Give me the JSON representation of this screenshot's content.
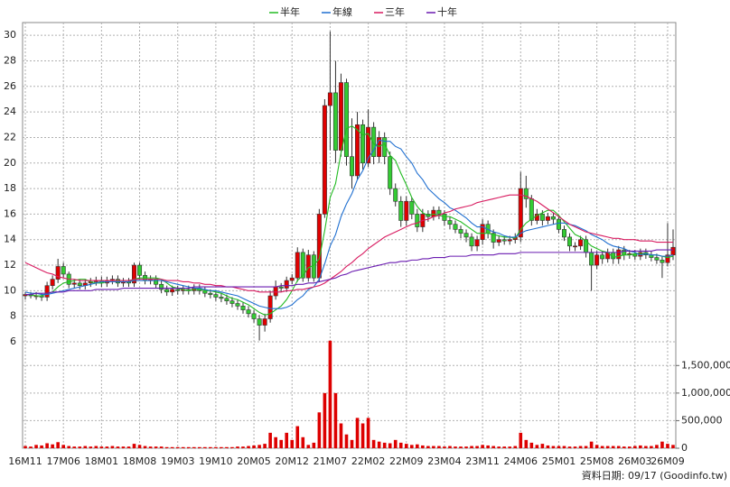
{
  "chart_data": {
    "type": "candlestick",
    "legend_position": "top",
    "grid": true,
    "up_color": "#e00000",
    "down_color": "#33cc33",
    "categories": [
      "16M11",
      null,
      null,
      null,
      null,
      null,
      null,
      "17M06",
      null,
      null,
      null,
      null,
      null,
      null,
      "18M01",
      null,
      null,
      null,
      null,
      null,
      null,
      "18M08",
      null,
      null,
      null,
      null,
      null,
      null,
      "19M03",
      null,
      null,
      null,
      null,
      null,
      null,
      "19M10",
      null,
      null,
      null,
      null,
      null,
      null,
      "20M05",
      null,
      null,
      null,
      null,
      null,
      null,
      "20M12",
      null,
      null,
      null,
      null,
      null,
      null,
      "21M07",
      null,
      null,
      null,
      null,
      null,
      null,
      "22M02",
      null,
      null,
      null,
      null,
      null,
      null,
      "22M09",
      null,
      null,
      null,
      null,
      null,
      null,
      "23M04",
      null,
      null,
      null,
      null,
      null,
      null,
      "23M11",
      null,
      null,
      null,
      null,
      null,
      null,
      "24M06",
      null,
      null,
      null,
      null,
      null,
      null,
      "25M01",
      null,
      null,
      null,
      null,
      null,
      null,
      "25M08",
      null,
      null,
      null,
      null,
      null,
      null,
      "26M03",
      null,
      null,
      null,
      null,
      null,
      "26M09",
      null
    ],
    "open": [
      9.6,
      9.7,
      9.6,
      9.6,
      9.5,
      10.4,
      10.9,
      11.9,
      11.3,
      10.5,
      10.6,
      10.4,
      10.6,
      10.7,
      10.8,
      10.6,
      10.8,
      10.9,
      10.6,
      10.7,
      10.6,
      12.0,
      11.2,
      10.8,
      10.9,
      10.5,
      10.1,
      9.9,
      10.1,
      10.0,
      10.1,
      10.0,
      10.2,
      10.0,
      9.8,
      9.7,
      9.5,
      9.4,
      9.2,
      9.0,
      8.8,
      8.5,
      8.2,
      7.8,
      7.3,
      7.8,
      9.6,
      10.3,
      10.2,
      10.8,
      11.0,
      13.0,
      11.0,
      12.8,
      11.0,
      16.0,
      24.5,
      25.5,
      21.0,
      26.3,
      20.5,
      19.0,
      23.0,
      20.0,
      22.8,
      20.5,
      22.0,
      20.5,
      18.0,
      17.0,
      15.5,
      17.0,
      16.0,
      15.0,
      16.0,
      15.8,
      16.3,
      16.0,
      15.5,
      15.2,
      14.8,
      14.5,
      14.2,
      13.5,
      14.0,
      15.2,
      14.5,
      13.8,
      14.0,
      13.9,
      14.0,
      14.2,
      18.0,
      17.2,
      15.5,
      16.0,
      15.5,
      15.8,
      15.6,
      14.8,
      14.2,
      13.5,
      13.5,
      14.0,
      13.0,
      12.0,
      12.8,
      12.5,
      13.0,
      12.5,
      13.2,
      12.8,
      12.9,
      12.7,
      13.0,
      12.8,
      12.6,
      12.4,
      12.2,
      12.8
    ],
    "high": [
      9.9,
      9.9,
      9.9,
      9.8,
      10.7,
      11.2,
      12.5,
      12.2,
      11.5,
      10.9,
      10.9,
      10.9,
      11.0,
      11.1,
      11.1,
      11.1,
      11.2,
      11.2,
      11.0,
      11.0,
      12.2,
      12.2,
      11.5,
      11.2,
      11.2,
      10.8,
      10.4,
      10.4,
      10.4,
      10.4,
      10.4,
      10.5,
      10.5,
      10.3,
      10.1,
      10.0,
      9.8,
      9.7,
      9.5,
      9.3,
      9.1,
      8.8,
      8.5,
      8.1,
      8.2,
      10.0,
      10.8,
      10.6,
      11.1,
      11.3,
      13.4,
      13.3,
      13.2,
      13.1,
      16.4,
      25.0,
      30.3,
      28.0,
      27.0,
      26.6,
      23.5,
      24.0,
      23.4,
      24.2,
      23.2,
      22.5,
      22.4,
      20.9,
      18.4,
      17.4,
      17.4,
      17.3,
      16.4,
      16.4,
      16.3,
      16.6,
      16.6,
      16.3,
      15.8,
      15.5,
      15.1,
      14.8,
      14.5,
      14.3,
      15.6,
      15.5,
      14.8,
      14.3,
      14.3,
      14.3,
      14.5,
      19.3,
      19.0,
      17.5,
      16.4,
      16.3,
      16.1,
      16.1,
      15.9,
      15.1,
      14.5,
      13.8,
      14.3,
      14.3,
      13.3,
      13.1,
      13.1,
      13.3,
      13.3,
      13.5,
      13.5,
      13.2,
      13.2,
      13.3,
      13.3,
      13.1,
      12.9,
      12.7,
      15.3,
      14.8
    ],
    "low": [
      9.3,
      9.4,
      9.3,
      9.2,
      9.2,
      10.1,
      10.6,
      11.0,
      10.2,
      10.2,
      10.1,
      10.1,
      10.3,
      10.4,
      10.3,
      10.3,
      10.5,
      10.3,
      10.3,
      10.3,
      10.3,
      10.9,
      10.5,
      10.5,
      10.2,
      9.8,
      9.6,
      9.6,
      9.7,
      9.7,
      9.7,
      9.7,
      9.7,
      9.5,
      9.4,
      9.2,
      9.1,
      8.9,
      8.7,
      8.5,
      8.2,
      7.9,
      7.5,
      6.1,
      6.8,
      7.5,
      9.3,
      9.9,
      9.9,
      10.5,
      10.7,
      10.7,
      10.7,
      10.7,
      10.7,
      15.7,
      21.0,
      20.0,
      20.5,
      19.8,
      18.0,
      18.7,
      19.5,
      19.7,
      19.9,
      20.0,
      19.9,
      17.5,
      16.6,
      15.0,
      15.1,
      15.6,
      14.6,
      14.6,
      15.4,
      15.5,
      15.6,
      15.1,
      14.8,
      14.5,
      14.1,
      13.8,
      13.1,
      13.1,
      13.6,
      14.1,
      13.3,
      13.5,
      13.6,
      13.6,
      13.7,
      13.8,
      16.5,
      15.1,
      15.2,
      15.1,
      15.2,
      15.2,
      14.5,
      13.9,
      13.1,
      13.1,
      13.2,
      12.6,
      10.0,
      11.7,
      12.1,
      12.2,
      12.1,
      12.1,
      12.4,
      12.5,
      12.4,
      12.4,
      12.5,
      12.3,
      12.1,
      11.0,
      11.9,
      12.4
    ],
    "close": [
      9.7,
      9.6,
      9.6,
      9.5,
      10.4,
      10.9,
      11.9,
      11.3,
      10.5,
      10.6,
      10.4,
      10.6,
      10.7,
      10.8,
      10.6,
      10.8,
      10.9,
      10.6,
      10.7,
      10.6,
      12.0,
      11.2,
      10.8,
      10.9,
      10.5,
      10.1,
      9.9,
      10.1,
      10.0,
      10.1,
      10.0,
      10.2,
      10.0,
      9.8,
      9.7,
      9.5,
      9.4,
      9.2,
      9.0,
      8.8,
      8.5,
      8.2,
      7.8,
      7.3,
      7.8,
      9.6,
      10.3,
      10.2,
      10.8,
      11.0,
      13.0,
      11.0,
      12.8,
      11.0,
      16.0,
      24.5,
      25.5,
      21.0,
      26.3,
      20.5,
      19.0,
      23.0,
      20.0,
      22.8,
      20.5,
      22.0,
      20.5,
      18.0,
      17.0,
      15.5,
      17.0,
      16.0,
      15.0,
      16.0,
      15.8,
      16.3,
      16.0,
      15.5,
      15.2,
      14.8,
      14.5,
      14.2,
      13.5,
      14.0,
      15.2,
      14.5,
      13.8,
      14.0,
      13.9,
      14.0,
      14.2,
      18.0,
      17.2,
      15.5,
      16.0,
      15.5,
      15.8,
      15.6,
      14.8,
      14.2,
      13.5,
      13.5,
      14.0,
      13.0,
      12.0,
      12.8,
      12.5,
      13.0,
      12.5,
      13.2,
      12.8,
      12.9,
      12.7,
      13.0,
      12.8,
      12.6,
      12.4,
      12.2,
      12.8,
      13.4
    ],
    "ylim": [
      6,
      31
    ],
    "yticks": [
      6,
      8,
      10,
      12,
      14,
      16,
      18,
      20,
      22,
      24,
      26,
      28,
      30
    ],
    "series": [
      {
        "name": "半年",
        "color": "#22bb22",
        "values": [
          9.7,
          9.7,
          9.6,
          9.6,
          9.8,
          9.9,
          10.3,
          10.6,
          10.7,
          10.8,
          10.9,
          10.9,
          10.7,
          10.6,
          10.6,
          10.7,
          10.7,
          10.7,
          10.7,
          10.7,
          10.9,
          11.0,
          11.0,
          11.0,
          11.0,
          10.9,
          10.6,
          10.3,
          10.2,
          10.1,
          10.0,
          10.1,
          10.1,
          10.0,
          10.0,
          9.9,
          9.8,
          9.6,
          9.4,
          9.3,
          9.1,
          8.9,
          8.6,
          8.3,
          8.1,
          8.2,
          8.5,
          8.8,
          9.3,
          10.0,
          10.8,
          11.2,
          11.8,
          12.0,
          12.5,
          14.7,
          17.3,
          18.4,
          20.8,
          22.7,
          22.9,
          22.6,
          22.2,
          22.3,
          21.5,
          21.3,
          21.5,
          20.6,
          20.2,
          19.2,
          18.3,
          17.3,
          16.6,
          16.1,
          15.9,
          16.0,
          15.9,
          15.8,
          15.8,
          15.6,
          15.4,
          15.1,
          14.8,
          14.5,
          14.5,
          14.5,
          14.4,
          14.3,
          14.2,
          14.2,
          14.1,
          14.8,
          15.3,
          15.6,
          15.9,
          16.1,
          16.3,
          16.3,
          15.9,
          15.4,
          14.9,
          14.4,
          14.2,
          13.9,
          13.5,
          13.3,
          13.1,
          13.0,
          12.6,
          12.7,
          12.8,
          12.8,
          12.9,
          12.9,
          12.9,
          12.8,
          12.8,
          12.7,
          12.6,
          12.7
        ]
      },
      {
        "name": "年線",
        "color": "#1f6fd0",
        "values": [
          9.9,
          9.8,
          9.8,
          9.7,
          9.7,
          9.8,
          9.9,
          10.0,
          10.1,
          10.2,
          10.3,
          10.4,
          10.5,
          10.6,
          10.7,
          10.7,
          10.7,
          10.7,
          10.7,
          10.7,
          10.8,
          10.8,
          10.8,
          10.8,
          10.8,
          10.8,
          10.7,
          10.6,
          10.5,
          10.4,
          10.3,
          10.2,
          10.2,
          10.1,
          10.0,
          10.0,
          9.9,
          9.8,
          9.7,
          9.6,
          9.4,
          9.2,
          9.0,
          8.8,
          8.7,
          8.6,
          8.6,
          8.6,
          8.7,
          8.9,
          9.3,
          9.6,
          10.1,
          10.3,
          10.9,
          12.1,
          13.5,
          14.4,
          15.8,
          16.8,
          17.6,
          18.7,
          19.4,
          20.4,
          21.0,
          21.8,
          21.7,
          21.7,
          21.3,
          21.1,
          20.5,
          20.0,
          19.2,
          18.7,
          18.0,
          17.6,
          17.2,
          16.9,
          16.5,
          16.3,
          16.0,
          15.7,
          15.3,
          15.0,
          15.0,
          14.8,
          14.6,
          14.5,
          14.3,
          14.2,
          14.2,
          14.5,
          14.7,
          14.8,
          14.9,
          15.0,
          15.1,
          15.2,
          15.3,
          15.3,
          15.2,
          15.1,
          14.9,
          14.7,
          14.4,
          14.2,
          14.0,
          13.7,
          13.5,
          13.4,
          13.3,
          13.1,
          13.0,
          12.8,
          12.9,
          12.8,
          12.8,
          12.7,
          12.7,
          12.8
        ]
      },
      {
        "name": "三年",
        "color": "#d81b60",
        "values": [
          12.2,
          12.0,
          11.8,
          11.6,
          11.4,
          11.3,
          11.1,
          11.0,
          10.9,
          10.9,
          10.8,
          10.8,
          10.8,
          10.8,
          10.8,
          10.8,
          10.8,
          10.8,
          10.8,
          10.8,
          10.9,
          10.9,
          10.9,
          10.9,
          10.9,
          10.9,
          10.8,
          10.8,
          10.8,
          10.7,
          10.7,
          10.6,
          10.6,
          10.5,
          10.5,
          10.4,
          10.4,
          10.3,
          10.3,
          10.2,
          10.1,
          10.0,
          10.0,
          9.9,
          9.9,
          9.9,
          9.9,
          9.9,
          10.0,
          10.0,
          10.1,
          10.1,
          10.2,
          10.3,
          10.4,
          10.6,
          10.9,
          11.2,
          11.5,
          11.9,
          12.2,
          12.6,
          12.9,
          13.3,
          13.6,
          13.9,
          14.2,
          14.4,
          14.6,
          14.8,
          15.0,
          15.2,
          15.3,
          15.5,
          15.6,
          15.8,
          15.9,
          16.1,
          16.2,
          16.4,
          16.5,
          16.6,
          16.7,
          16.9,
          17.0,
          17.1,
          17.2,
          17.3,
          17.4,
          17.5,
          17.5,
          17.5,
          17.4,
          17.2,
          17.0,
          16.7,
          16.4,
          16.1,
          15.8,
          15.5,
          15.2,
          15.0,
          14.8,
          14.6,
          14.5,
          14.4,
          14.3,
          14.2,
          14.1,
          14.1,
          14.0,
          14.0,
          14.0,
          13.9,
          13.9,
          13.9,
          13.8,
          13.8,
          13.8,
          13.8
        ]
      },
      {
        "name": "十年",
        "color": "#6a1bb0",
        "values": [
          9.7,
          9.7,
          9.8,
          9.8,
          9.8,
          9.9,
          9.9,
          9.9,
          10.0,
          10.0,
          10.0,
          10.0,
          10.0,
          10.1,
          10.1,
          10.1,
          10.1,
          10.1,
          10.2,
          10.2,
          10.2,
          10.2,
          10.2,
          10.2,
          10.2,
          10.2,
          10.2,
          10.2,
          10.2,
          10.2,
          10.2,
          10.3,
          10.3,
          10.3,
          10.3,
          10.3,
          10.3,
          10.3,
          10.3,
          10.3,
          10.3,
          10.3,
          10.3,
          10.3,
          10.3,
          10.3,
          10.3,
          10.4,
          10.4,
          10.4,
          10.5,
          10.5,
          10.6,
          10.6,
          10.7,
          10.8,
          10.9,
          11.0,
          11.2,
          11.3,
          11.5,
          11.6,
          11.7,
          11.8,
          11.9,
          12.0,
          12.1,
          12.2,
          12.2,
          12.3,
          12.3,
          12.4,
          12.4,
          12.5,
          12.5,
          12.6,
          12.6,
          12.6,
          12.7,
          12.7,
          12.7,
          12.7,
          12.8,
          12.8,
          12.8,
          12.8,
          12.8,
          12.9,
          12.9,
          12.9,
          12.9,
          13.0,
          13.0,
          13.0,
          13.0,
          13.0,
          13.0,
          13.0,
          13.0,
          13.0,
          13.0,
          13.0,
          13.0,
          13.0,
          13.0,
          13.0,
          13.0,
          13.0,
          13.0,
          13.0,
          13.1,
          13.1,
          13.1,
          13.1,
          13.1,
          13.1,
          13.2,
          13.2,
          13.2,
          13.2
        ]
      }
    ],
    "volume": {
      "color": "#dd0000",
      "values": [
        40000,
        30000,
        60000,
        50000,
        90000,
        70000,
        110000,
        60000,
        40000,
        30000,
        30000,
        40000,
        30000,
        40000,
        30000,
        30000,
        40000,
        30000,
        30000,
        30000,
        80000,
        60000,
        40000,
        30000,
        30000,
        30000,
        20000,
        20000,
        20000,
        20000,
        20000,
        20000,
        20000,
        20000,
        20000,
        20000,
        20000,
        20000,
        20000,
        30000,
        30000,
        40000,
        50000,
        60000,
        80000,
        280000,
        200000,
        150000,
        280000,
        150000,
        400000,
        200000,
        60000,
        100000,
        650000,
        1000000,
        1950000,
        1000000,
        450000,
        250000,
        150000,
        550000,
        450000,
        550000,
        150000,
        120000,
        100000,
        90000,
        150000,
        100000,
        80000,
        60000,
        70000,
        50000,
        40000,
        40000,
        40000,
        30000,
        40000,
        30000,
        30000,
        30000,
        40000,
        40000,
        60000,
        50000,
        40000,
        30000,
        30000,
        30000,
        40000,
        280000,
        150000,
        100000,
        60000,
        80000,
        50000,
        40000,
        40000,
        40000,
        30000,
        30000,
        40000,
        40000,
        120000,
        60000,
        40000,
        40000,
        40000,
        40000,
        30000,
        30000,
        40000,
        50000,
        40000,
        40000,
        60000,
        120000,
        80000,
        60000
      ],
      "ylim": [
        0,
        1930000
      ],
      "yticks": [
        0,
        {
          "value": 500000,
          "label": "500,000"
        },
        {
          "value": 1000000,
          "label": "1,000,000"
        },
        {
          "value": 1500000,
          "label": "1,500,000"
        }
      ]
    },
    "source": "資料日期: 09/17 (Goodinfo.tw)"
  }
}
